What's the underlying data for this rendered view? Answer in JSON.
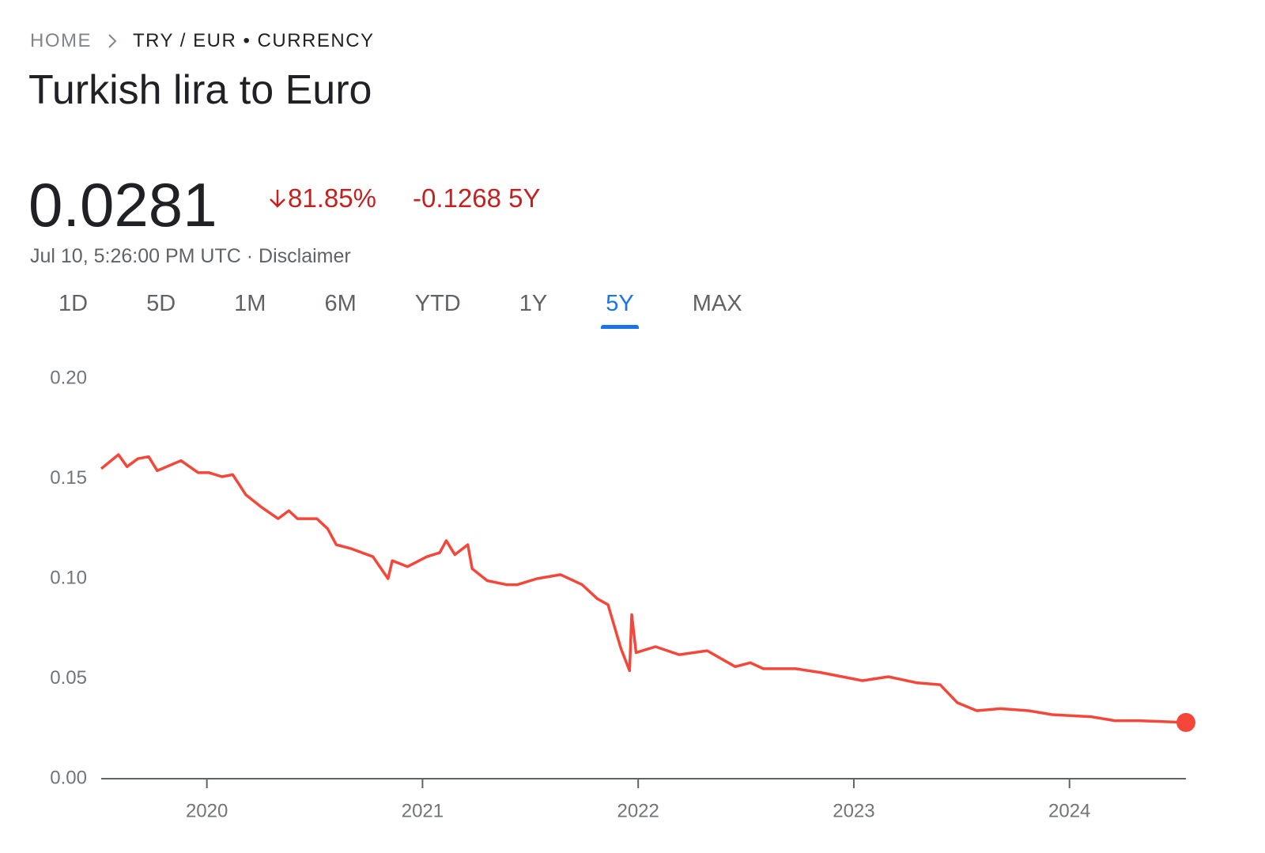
{
  "header": {
    "breadcrumb_home": "HOME",
    "breadcrumb_current": "TRY / EUR • CURRENCY",
    "title": "Turkish lira to Euro"
  },
  "quote": {
    "price": "0.0281",
    "change_percent": "81.85%",
    "change_value": "-0.1268 5Y",
    "timestamp": "Jul 10, 5:26:00 PM UTC",
    "separator": "·",
    "disclaimer": "Disclaimer"
  },
  "tabs": {
    "items": [
      "1D",
      "5D",
      "1M",
      "6M",
      "YTD",
      "1Y",
      "5Y",
      "MAX"
    ],
    "selected": "5Y"
  },
  "chart_data": {
    "type": "line",
    "color": "#f4473a",
    "x": [
      2019.51,
      2019.59,
      2019.63,
      2019.68,
      2019.73,
      2019.77,
      2019.88,
      2019.96,
      2020.01,
      2020.07,
      2020.12,
      2020.18,
      2020.25,
      2020.33,
      2020.38,
      2020.42,
      2020.51,
      2020.56,
      2020.6,
      2020.67,
      2020.77,
      2020.84,
      2020.86,
      2020.93,
      2021.02,
      2021.08,
      2021.11,
      2021.15,
      2021.21,
      2021.23,
      2021.3,
      2021.39,
      2021.44,
      2021.53,
      2021.64,
      2021.74,
      2021.81,
      2021.86,
      2021.92,
      2021.96,
      2021.97,
      2021.99,
      2022.08,
      2022.19,
      2022.32,
      2022.45,
      2022.52,
      2022.58,
      2022.73,
      2022.85,
      2023.04,
      2023.16,
      2023.29,
      2023.4,
      2023.48,
      2023.57,
      2023.68,
      2023.81,
      2023.92,
      2024.1,
      2024.21,
      2024.32,
      2024.54
    ],
    "values": [
      0.155,
      0.162,
      0.156,
      0.16,
      0.161,
      0.154,
      0.159,
      0.153,
      0.153,
      0.151,
      0.152,
      0.142,
      0.136,
      0.13,
      0.134,
      0.13,
      0.13,
      0.125,
      0.117,
      0.115,
      0.111,
      0.1,
      0.109,
      0.106,
      0.111,
      0.113,
      0.119,
      0.112,
      0.117,
      0.105,
      0.099,
      0.097,
      0.097,
      0.1,
      0.102,
      0.097,
      0.09,
      0.087,
      0.065,
      0.054,
      0.082,
      0.063,
      0.066,
      0.062,
      0.064,
      0.056,
      0.058,
      0.055,
      0.055,
      0.053,
      0.049,
      0.051,
      0.048,
      0.047,
      0.038,
      0.034,
      0.035,
      0.034,
      0.032,
      0.031,
      0.029,
      0.029,
      0.0281
    ],
    "xlim": [
      2019.51,
      2024.54
    ],
    "xticks": [
      2020,
      2021,
      2022,
      2023,
      2024
    ],
    "ylim": [
      0,
      0.2
    ],
    "yticks": [
      {
        "value": 0,
        "label": "0.00"
      },
      {
        "value": 0.05,
        "label": "0.05"
      },
      {
        "value": 0.1,
        "label": "0.10"
      },
      {
        "value": 0.15,
        "label": "0.15"
      },
      {
        "value": 0.2,
        "label": "0.20"
      }
    ]
  }
}
